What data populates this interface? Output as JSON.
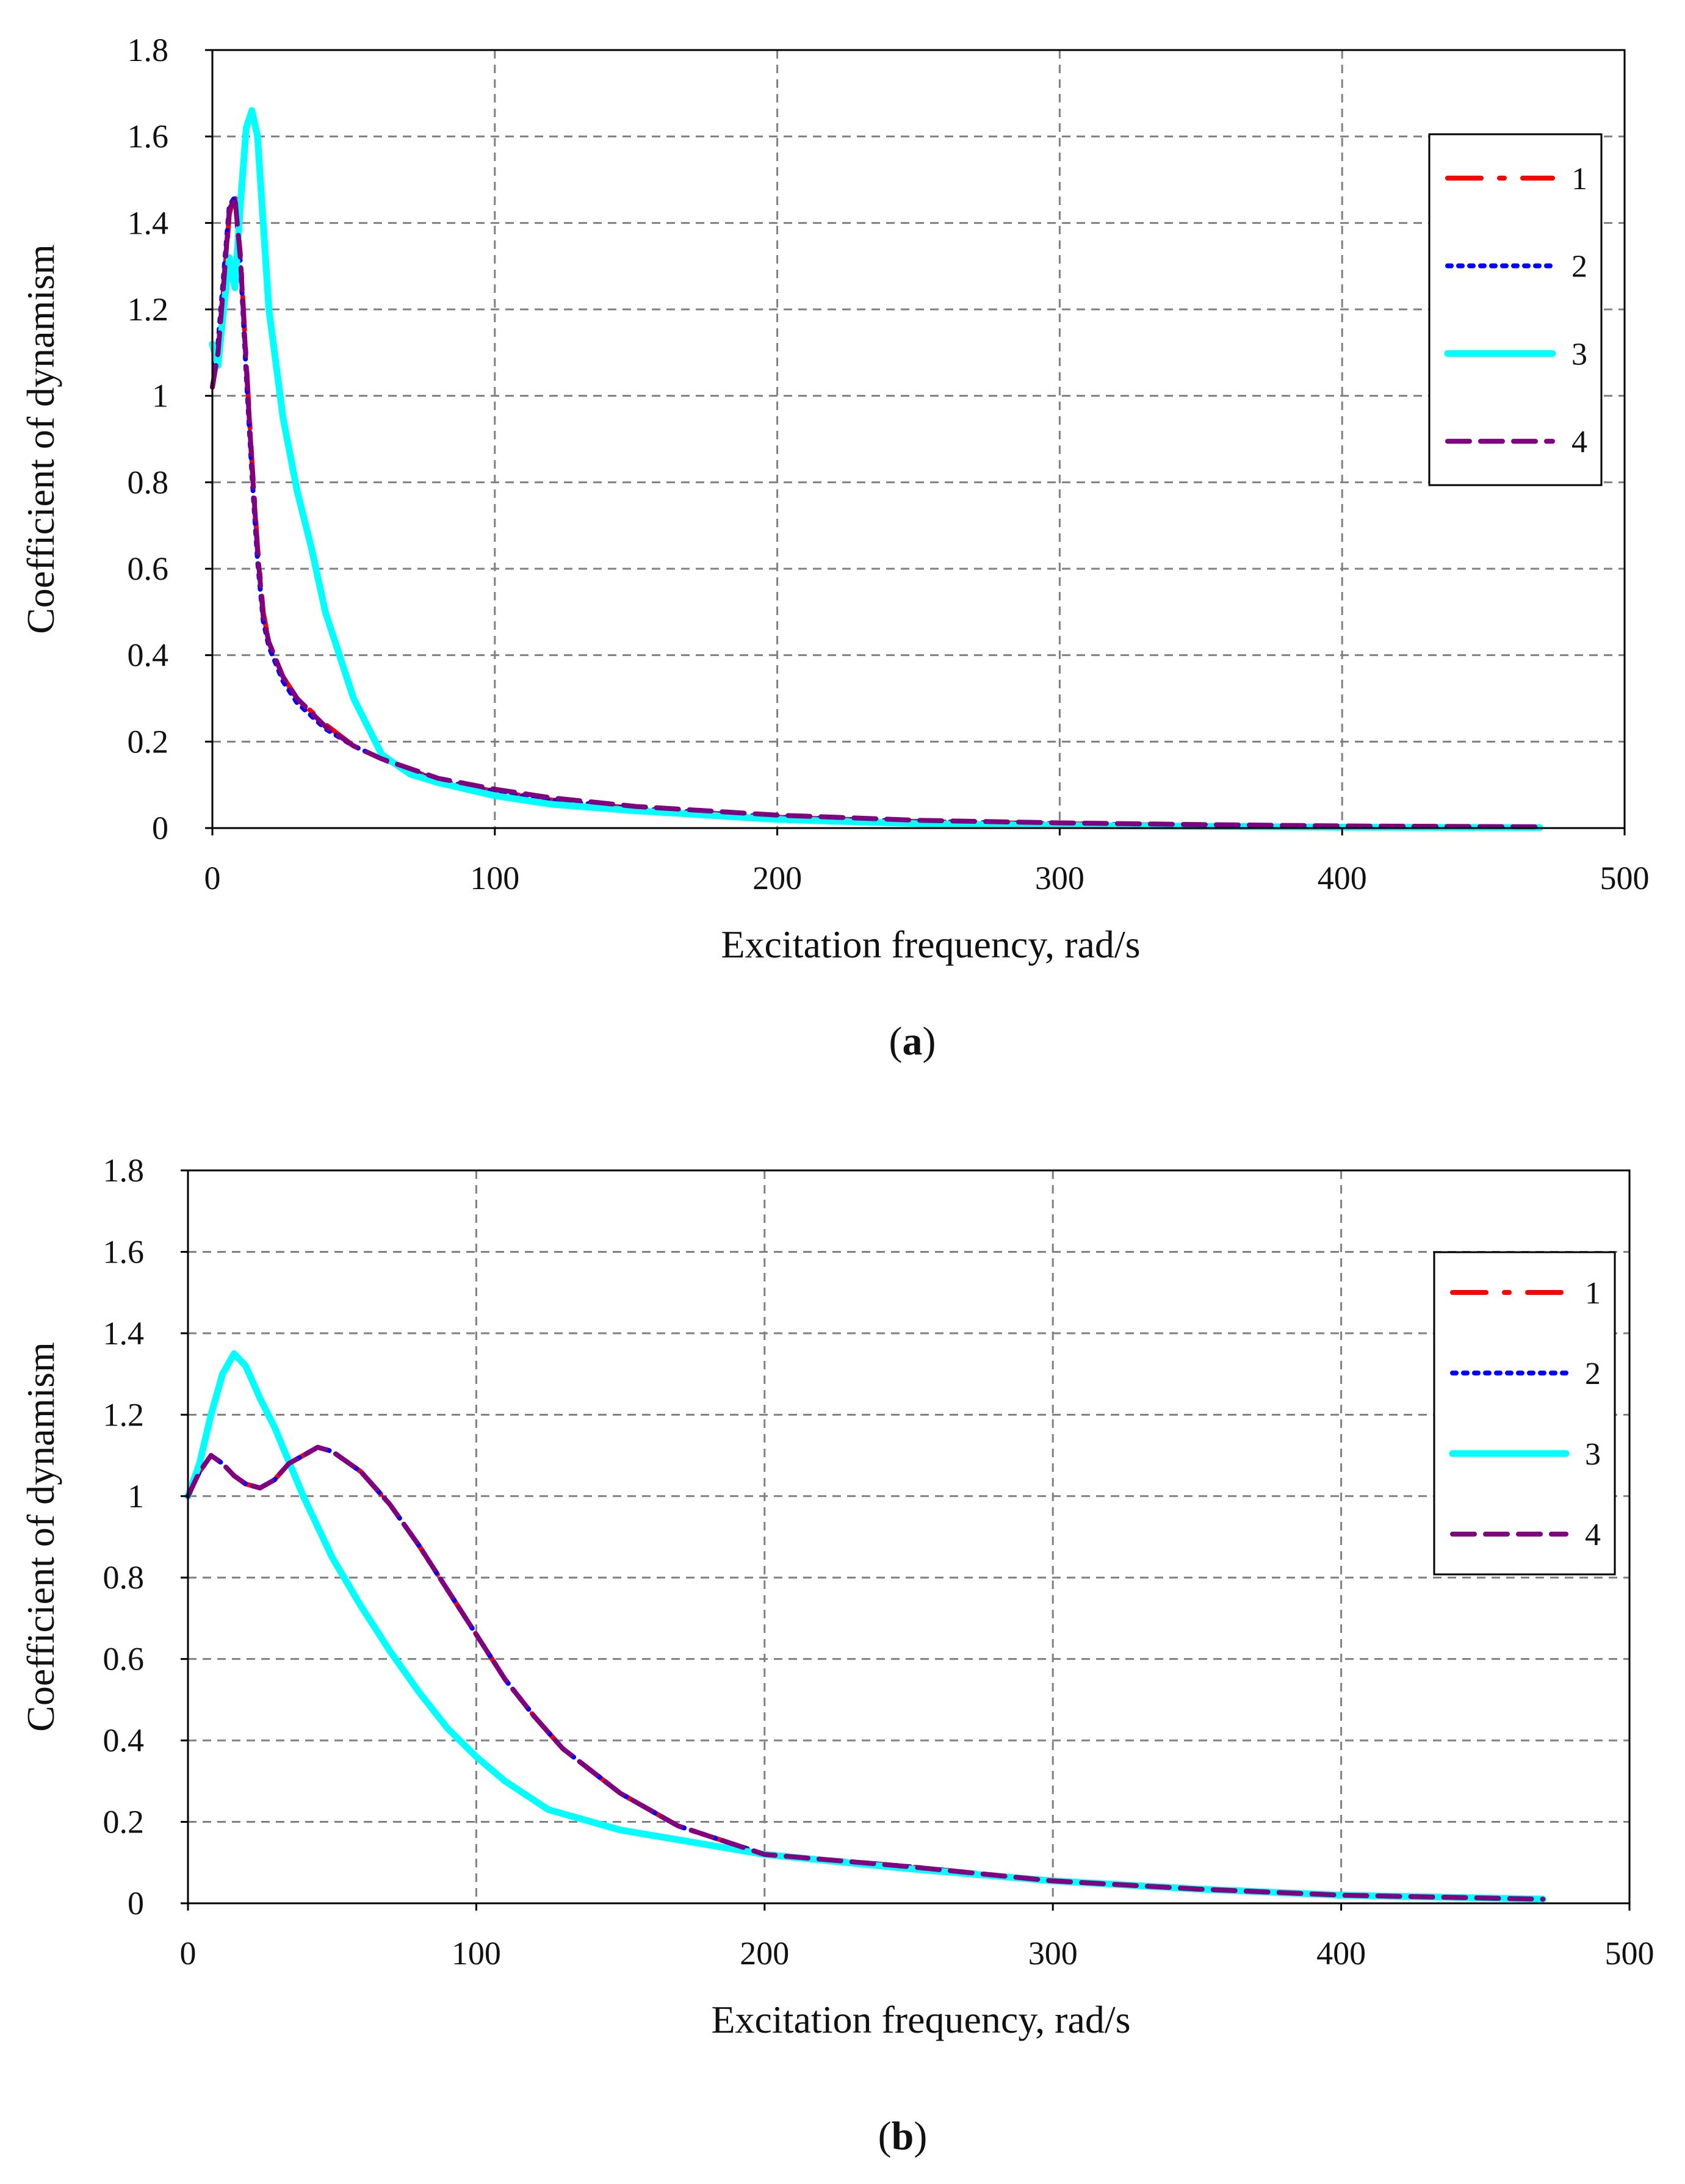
{
  "chart_data": [
    {
      "panel": "a",
      "caption": {
        "open": "(",
        "letter": "a",
        "close": ")"
      },
      "type": "line",
      "title": "",
      "xlabel": "Excitation frequency, rad/s",
      "ylabel": "Coefficient of dynamism",
      "xlim": [
        0,
        500
      ],
      "ylim": [
        0,
        1.8
      ],
      "xticks": [
        "0",
        "100",
        "200",
        "300",
        "400",
        "500"
      ],
      "yticks": [
        "0",
        "0.2",
        "0.4",
        "0.6",
        "0.8",
        "1",
        "1.2",
        "1.4",
        "1.6",
        "1.8"
      ],
      "xtick_values": [
        0,
        100,
        200,
        300,
        400,
        500
      ],
      "ytick_values": [
        0,
        0.2,
        0.4,
        0.6,
        0.8,
        1,
        1.2,
        1.4,
        1.6,
        1.8
      ],
      "grid": true,
      "legend_position": "top-right",
      "series": [
        {
          "name": "1",
          "color": "#ff0000",
          "style": "dash-dot",
          "x": [
            0,
            2,
            4,
            6,
            8,
            10,
            12,
            14,
            16,
            18,
            20,
            25,
            30,
            40,
            50,
            60,
            80,
            100,
            120,
            150,
            200,
            250,
            300,
            350,
            400,
            470
          ],
          "y": [
            1.02,
            1.1,
            1.25,
            1.42,
            1.47,
            1.32,
            1.08,
            0.85,
            0.65,
            0.5,
            0.43,
            0.35,
            0.3,
            0.24,
            0.19,
            0.16,
            0.11,
            0.085,
            0.065,
            0.045,
            0.025,
            0.015,
            0.01,
            0.006,
            0.004,
            0.002
          ]
        },
        {
          "name": "2",
          "color": "#0000ff",
          "style": "dotted",
          "x": [
            0,
            2,
            4,
            6,
            8,
            10,
            12,
            14,
            16,
            18,
            20,
            25,
            30,
            40,
            50,
            60,
            80,
            100,
            120,
            150,
            200,
            250,
            300,
            350,
            400,
            470
          ],
          "y": [
            1.02,
            1.12,
            1.28,
            1.44,
            1.46,
            1.3,
            1.05,
            0.82,
            0.62,
            0.48,
            0.42,
            0.34,
            0.29,
            0.23,
            0.19,
            0.16,
            0.11,
            0.085,
            0.065,
            0.045,
            0.025,
            0.015,
            0.01,
            0.006,
            0.004,
            0.002
          ]
        },
        {
          "name": "3",
          "color": "#00ffff",
          "style": "solid",
          "x": [
            0,
            2,
            4,
            6,
            8,
            10,
            12,
            14,
            16,
            18,
            20,
            25,
            30,
            35,
            40,
            50,
            60,
            70,
            80,
            100,
            120,
            150,
            200,
            250,
            300,
            350,
            400,
            470
          ],
          "y": [
            1.12,
            1.07,
            1.2,
            1.32,
            1.25,
            1.45,
            1.62,
            1.66,
            1.6,
            1.4,
            1.2,
            0.95,
            0.78,
            0.65,
            0.5,
            0.3,
            0.17,
            0.125,
            0.105,
            0.075,
            0.055,
            0.04,
            0.02,
            0.01,
            0.006,
            0.004,
            0.002,
            0.001
          ]
        },
        {
          "name": "4",
          "color": "#800080",
          "style": "dashed",
          "x": [
            0,
            2,
            4,
            6,
            8,
            10,
            12,
            14,
            16,
            18,
            20,
            25,
            30,
            40,
            50,
            60,
            80,
            100,
            120,
            150,
            200,
            250,
            300,
            350,
            400,
            470
          ],
          "y": [
            1.02,
            1.1,
            1.26,
            1.43,
            1.46,
            1.31,
            1.07,
            0.84,
            0.64,
            0.49,
            0.43,
            0.35,
            0.3,
            0.235,
            0.19,
            0.16,
            0.115,
            0.09,
            0.07,
            0.05,
            0.03,
            0.018,
            0.012,
            0.008,
            0.005,
            0.003
          ]
        }
      ]
    },
    {
      "panel": "b",
      "caption": {
        "open": "(",
        "letter": "b",
        "close": ")"
      },
      "type": "line",
      "title": "",
      "xlabel": "Excitation frequency, rad/s",
      "ylabel": "Coefficient of dynamism",
      "xlim": [
        0,
        500
      ],
      "ylim": [
        0,
        1.8
      ],
      "xticks": [
        "0",
        "100",
        "200",
        "300",
        "400",
        "500"
      ],
      "yticks": [
        "0",
        "0.2",
        "0.4",
        "0.6",
        "0.8",
        "1",
        "1.2",
        "1.4",
        "1.6",
        "1.8"
      ],
      "xtick_values": [
        0,
        100,
        200,
        300,
        400,
        500
      ],
      "ytick_values": [
        0,
        0.2,
        0.4,
        0.6,
        0.8,
        1,
        1.2,
        1.4,
        1.6,
        1.8
      ],
      "grid": true,
      "legend_position": "top-right",
      "series": [
        {
          "name": "1",
          "color": "#ff0000",
          "style": "dash-dot",
          "x": [
            0,
            4,
            8,
            12,
            16,
            20,
            25,
            30,
            35,
            40,
            45,
            50,
            60,
            70,
            80,
            90,
            100,
            110,
            120,
            130,
            150,
            170,
            200,
            250,
            300,
            350,
            400,
            470
          ],
          "y": [
            1.0,
            1.06,
            1.1,
            1.08,
            1.05,
            1.03,
            1.02,
            1.04,
            1.08,
            1.1,
            1.12,
            1.11,
            1.06,
            0.98,
            0.88,
            0.77,
            0.66,
            0.55,
            0.46,
            0.38,
            0.27,
            0.19,
            0.12,
            0.09,
            0.055,
            0.035,
            0.02,
            0.01
          ]
        },
        {
          "name": "2",
          "color": "#0000ff",
          "style": "dotted",
          "x": [
            0,
            4,
            8,
            12,
            16,
            20,
            25,
            30,
            35,
            40,
            45,
            50,
            60,
            70,
            80,
            90,
            100,
            110,
            120,
            130,
            150,
            170,
            200,
            250,
            300,
            350,
            400,
            470
          ],
          "y": [
            1.0,
            1.06,
            1.1,
            1.08,
            1.05,
            1.03,
            1.02,
            1.04,
            1.08,
            1.1,
            1.12,
            1.11,
            1.06,
            0.98,
            0.88,
            0.77,
            0.66,
            0.55,
            0.46,
            0.38,
            0.27,
            0.19,
            0.12,
            0.09,
            0.055,
            0.035,
            0.02,
            0.01
          ]
        },
        {
          "name": "3",
          "color": "#00ffff",
          "style": "solid",
          "x": [
            0,
            4,
            8,
            12,
            16,
            20,
            25,
            30,
            40,
            50,
            60,
            70,
            80,
            90,
            100,
            110,
            125,
            150,
            200,
            250,
            300,
            350,
            400,
            470
          ],
          "y": [
            1.0,
            1.08,
            1.2,
            1.3,
            1.35,
            1.32,
            1.24,
            1.17,
            1.0,
            0.85,
            0.73,
            0.62,
            0.52,
            0.43,
            0.36,
            0.3,
            0.23,
            0.18,
            0.12,
            0.085,
            0.055,
            0.035,
            0.02,
            0.01
          ]
        },
        {
          "name": "4",
          "color": "#800080",
          "style": "dashed",
          "x": [
            0,
            4,
            8,
            12,
            16,
            20,
            25,
            30,
            35,
            40,
            45,
            50,
            60,
            70,
            80,
            90,
            100,
            110,
            120,
            130,
            150,
            170,
            200,
            250,
            300,
            350,
            400,
            470
          ],
          "y": [
            1.0,
            1.06,
            1.1,
            1.08,
            1.05,
            1.03,
            1.02,
            1.04,
            1.08,
            1.1,
            1.12,
            1.11,
            1.06,
            0.98,
            0.88,
            0.77,
            0.66,
            0.55,
            0.46,
            0.38,
            0.27,
            0.19,
            0.12,
            0.09,
            0.055,
            0.035,
            0.02,
            0.01
          ]
        }
      ]
    }
  ]
}
